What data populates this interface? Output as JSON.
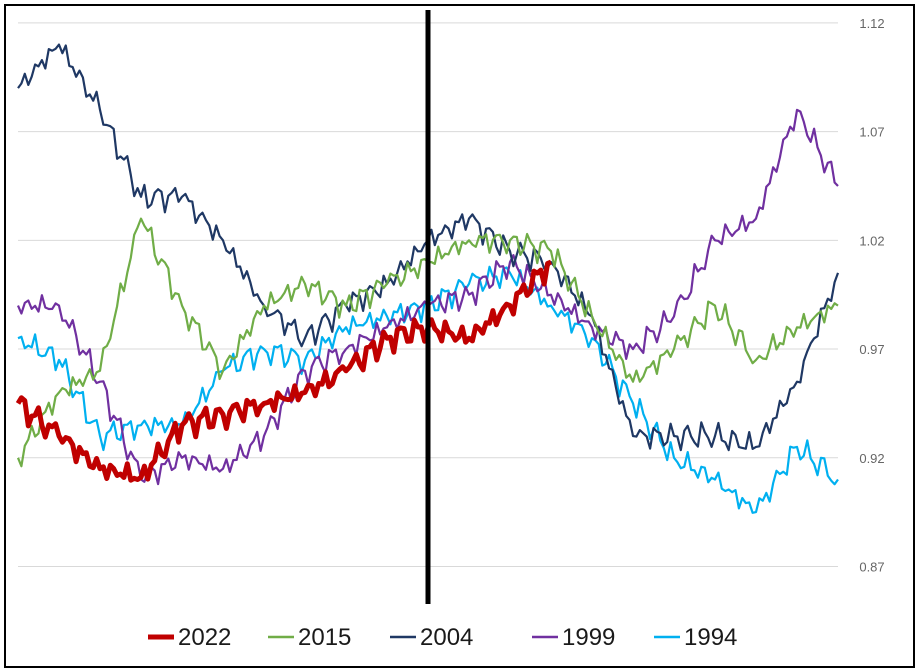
{
  "chart_data": {
    "type": "line",
    "title": "",
    "xlabel": "",
    "ylabel": "",
    "ylim": [
      0.85,
      1.125
    ],
    "y_ticks": [
      "1.12",
      "1.07",
      "1.02",
      "0.97",
      "0.92",
      "0.87"
    ],
    "y_tick_values": [
      1.12,
      1.07,
      1.02,
      0.97,
      0.92,
      0.87
    ],
    "grid": true,
    "legend_position": "bottom",
    "reference_line": "vertical divider at series midpoint",
    "x": [
      0,
      10,
      20,
      30,
      40,
      50,
      60,
      70,
      80,
      90,
      100,
      110,
      120,
      130,
      140,
      150,
      160,
      170,
      180,
      190,
      200
    ],
    "series": [
      {
        "name": "2022",
        "color": "#c00000",
        "values": [
          0.945,
          0.93,
          0.915,
          0.911,
          0.935,
          0.94,
          0.945,
          0.95,
          0.96,
          0.975,
          0.98,
          0.975,
          0.99,
          1.01,
          null,
          null,
          null,
          null,
          null,
          null,
          null
        ]
      },
      {
        "name": "2015",
        "color": "#70ad47",
        "values": [
          0.92,
          0.95,
          0.96,
          1.03,
          0.99,
          0.96,
          0.99,
          1.0,
          0.99,
          1.0,
          1.01,
          1.02,
          1.02,
          1.015,
          0.985,
          0.955,
          0.97,
          0.99,
          0.965,
          0.98,
          0.99
        ]
      },
      {
        "name": "2004",
        "color": "#1f3864",
        "values": [
          1.09,
          1.11,
          1.08,
          1.04,
          1.04,
          1.02,
          0.99,
          0.975,
          0.99,
          1.0,
          1.02,
          1.03,
          1.015,
          1.01,
          0.985,
          0.93,
          0.93,
          0.93,
          0.925,
          0.955,
          1.005
        ]
      },
      {
        "name": "1999",
        "color": "#7030a0",
        "values": [
          0.99,
          0.99,
          0.955,
          0.91,
          0.92,
          0.915,
          0.93,
          0.96,
          0.97,
          0.98,
          0.99,
          0.995,
          1.01,
          0.995,
          0.98,
          0.97,
          0.985,
          1.02,
          1.03,
          1.08,
          1.045
        ]
      },
      {
        "name": "1994",
        "color": "#00b0f0",
        "values": [
          0.975,
          0.965,
          0.93,
          0.935,
          0.935,
          0.96,
          0.97,
          0.965,
          0.98,
          0.985,
          0.99,
          1.0,
          1.005,
          0.99,
          0.975,
          0.945,
          0.92,
          0.91,
          0.895,
          0.925,
          0.91
        ]
      }
    ]
  }
}
